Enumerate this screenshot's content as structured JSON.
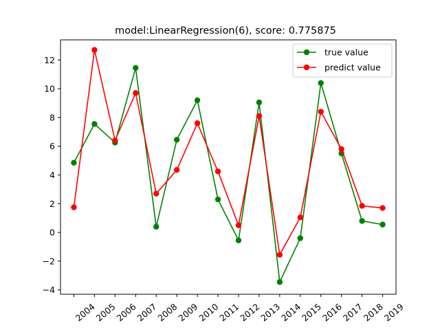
{
  "chart_data": {
    "type": "line",
    "title": "model:LinearRegression(6), score: 0.775875",
    "xlabel": "",
    "ylabel": "",
    "categories": [
      "2004",
      "2005",
      "2006",
      "2007",
      "2008",
      "2009",
      "2010",
      "2011",
      "2012",
      "2013",
      "2014",
      "2015",
      "2016",
      "2017",
      "2018",
      "2019"
    ],
    "y_ticks": [
      -4,
      -2,
      0,
      2,
      4,
      6,
      8,
      10,
      12
    ],
    "ylim": [
      -4.3,
      13.4
    ],
    "grid": false,
    "legend_position": "top-right",
    "series": [
      {
        "name": "true value",
        "color": "#008000",
        "marker": "circle",
        "values": [
          4.85,
          7.55,
          6.25,
          11.45,
          0.4,
          6.45,
          9.2,
          2.3,
          -0.55,
          9.05,
          -3.45,
          -0.4,
          10.4,
          5.5,
          0.8,
          0.55
        ]
      },
      {
        "name": "predict value",
        "color": "#ff0000",
        "marker": "circle",
        "values": [
          1.75,
          12.7,
          6.4,
          9.7,
          2.7,
          4.35,
          7.6,
          4.25,
          0.5,
          8.1,
          -1.55,
          1.05,
          8.4,
          5.8,
          1.85,
          1.7
        ]
      }
    ]
  }
}
